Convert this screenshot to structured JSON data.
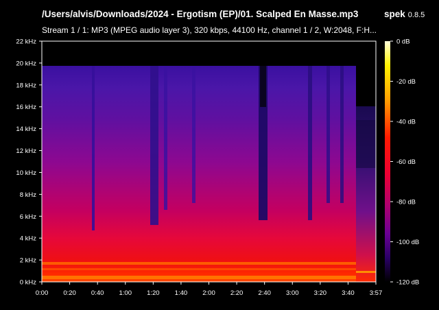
{
  "header": {
    "file_path": "/Users/alvis/Downloads/2024 - Ergotism (EP)/01. Scalped En Masse.mp3",
    "app_name": "spek",
    "app_version": "0.8.5",
    "stream_info": "Stream 1 / 1: MP3 (MPEG audio layer 3), 320 kbps, 44100 Hz, channel 1 / 2, W:2048, F:H..."
  },
  "spectrogram": {
    "frequency_labels": [
      "0 kHz",
      "2 kHz",
      "4 kHz",
      "6 kHz",
      "8 kHz",
      "10 kHz",
      "12 kHz",
      "14 kHz",
      "16 kHz",
      "18 kHz",
      "20 kHz",
      "22 kHz"
    ],
    "time_labels": [
      "0:00",
      "0:20",
      "0:40",
      "1:00",
      "1:20",
      "1:40",
      "2:00",
      "2:20",
      "2:40",
      "3:00",
      "3:20",
      "3:40",
      "3:57"
    ],
    "colors": {
      "background": "#000000",
      "axis": "#ffffff"
    }
  },
  "level_scale": {
    "labels": [
      "0 dB",
      "-20 dB",
      "-40 dB",
      "-60 dB",
      "-80 dB",
      "-100 dB",
      "-120 dB"
    ],
    "palette": [
      "#ffffdc",
      "#fff200",
      "#ff9a00",
      "#ff1a00",
      "#ee0032",
      "#b0006e",
      "#6a0094",
      "#2a0066",
      "#000000"
    ]
  }
}
